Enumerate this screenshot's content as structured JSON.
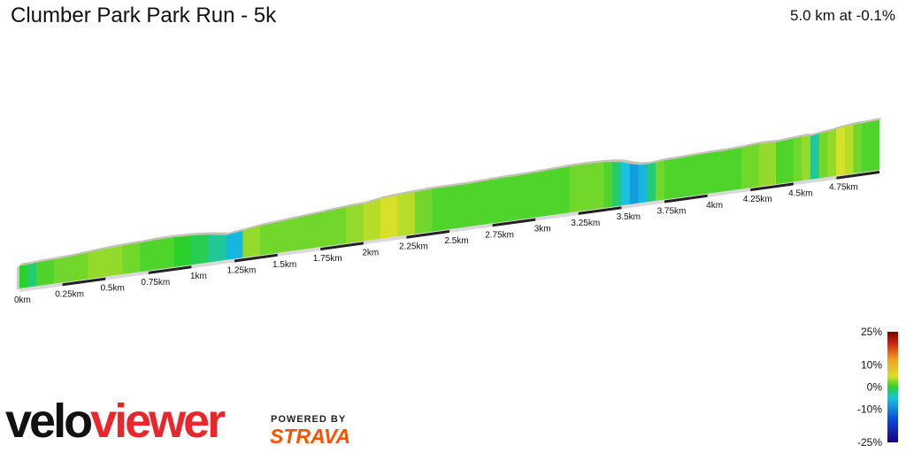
{
  "header": {
    "title": "Clumber Park Park Run - 5k",
    "summary": "5.0 km at -0.1%"
  },
  "brand": {
    "velo": "velo",
    "viewer": "viewer",
    "powered_by": "POWERED BY",
    "strava": "STRAVA"
  },
  "colors": {
    "strava": "#fc5200",
    "veloviewer_red": "#e8262b"
  },
  "chart_data": {
    "type": "area",
    "title": "Clumber Park Park Run - 5k",
    "xlabel": "",
    "ylabel": "",
    "x_unit": "km",
    "xlim": [
      0,
      5.0
    ],
    "tick_labels": [
      "0km",
      "0.25km",
      "0.5km",
      "0.75km",
      "1km",
      "1.25km",
      "1.5km",
      "1.75km",
      "2km",
      "2.25km",
      "2.5km",
      "2.75km",
      "3km",
      "3.25km",
      "3.5km",
      "3.75km",
      "4km",
      "4.25km",
      "4.5km",
      "4.75km"
    ],
    "tick_values": [
      0,
      0.25,
      0.5,
      0.75,
      1,
      1.25,
      1.5,
      1.75,
      2,
      2.25,
      2.5,
      2.75,
      3,
      3.25,
      3.5,
      3.75,
      4,
      4.25,
      4.5,
      4.75
    ],
    "profile": {
      "x": [
        0,
        0.05,
        0.1,
        0.2,
        0.3,
        0.4,
        0.5,
        0.6,
        0.7,
        0.8,
        0.9,
        1.0,
        1.1,
        1.2,
        1.3,
        1.4,
        1.5,
        1.6,
        1.7,
        1.8,
        1.9,
        2.0,
        2.1,
        2.2,
        2.3,
        2.4,
        2.5,
        2.6,
        2.7,
        2.8,
        2.9,
        3.0,
        3.1,
        3.2,
        3.3,
        3.4,
        3.45,
        3.5,
        3.55,
        3.6,
        3.65,
        3.7,
        3.75,
        3.8,
        3.9,
        4.0,
        4.1,
        4.2,
        4.3,
        4.4,
        4.5,
        4.55,
        4.6,
        4.65,
        4.7,
        4.75,
        4.8,
        4.85,
        4.9,
        4.95,
        5.0
      ],
      "relief": [
        2,
        2,
        3,
        4,
        5,
        7,
        9,
        10,
        11,
        12,
        12,
        11,
        9,
        5,
        8,
        11,
        13,
        15,
        17,
        19,
        21,
        22,
        26,
        28,
        29,
        30,
        30,
        30,
        31,
        32,
        32,
        33,
        34,
        35,
        35,
        34,
        33,
        31,
        27,
        24,
        23,
        24,
        25,
        25,
        26,
        27,
        27,
        28,
        30,
        29,
        31,
        32,
        31,
        33,
        34,
        36,
        38,
        39,
        39,
        40,
        40
      ],
      "gradient_pct": [
        0,
        -2,
        1,
        2,
        2,
        3,
        3,
        2,
        1,
        1,
        0,
        -1,
        -3,
        -6,
        3,
        2,
        2,
        2,
        2,
        2,
        3,
        4,
        5,
        4,
        2,
        1,
        1,
        1,
        1,
        1,
        1,
        1,
        1,
        2,
        2,
        1,
        -2,
        -5,
        -8,
        -6,
        -2,
        2,
        1,
        1,
        1,
        1,
        1,
        2,
        3,
        1,
        2,
        3,
        -3,
        2,
        3,
        5,
        4,
        2,
        1,
        1,
        1
      ]
    },
    "color_scale": {
      "min": -25,
      "max": 25,
      "legend_labels": [
        "25%",
        "10%",
        "0%",
        "-10%",
        "-25%"
      ],
      "legend_values": [
        25,
        10,
        0,
        -10,
        -25
      ]
    },
    "summary": {
      "distance_km": 5.0,
      "avg_gradient_pct": -0.1
    }
  }
}
